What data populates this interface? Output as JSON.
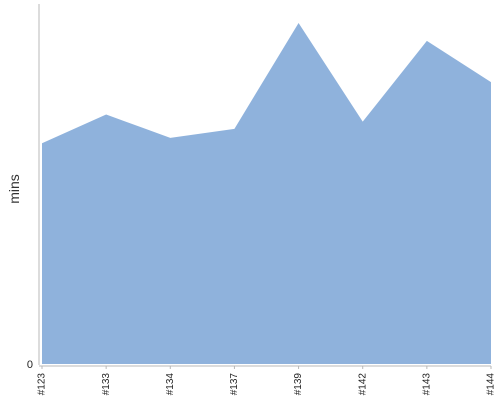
{
  "chart_data": {
    "type": "area",
    "categories": [
      "#123",
      "#133",
      "#134",
      "#137",
      "#139",
      "#142",
      "#143",
      "#144"
    ],
    "series": [
      {
        "values": [
          61.5,
          69.5,
          63,
          65.5,
          95,
          67.5,
          90,
          78.5
        ]
      }
    ],
    "title": "",
    "xlabel": "",
    "ylabel": "mins",
    "ylim": [
      0,
      100
    ],
    "y_tick_labels": [
      "0"
    ],
    "grid": false,
    "legend": "none",
    "colors": {
      "area_fill": "#8fb2dc",
      "axis_line": "#b8b8b8"
    }
  }
}
